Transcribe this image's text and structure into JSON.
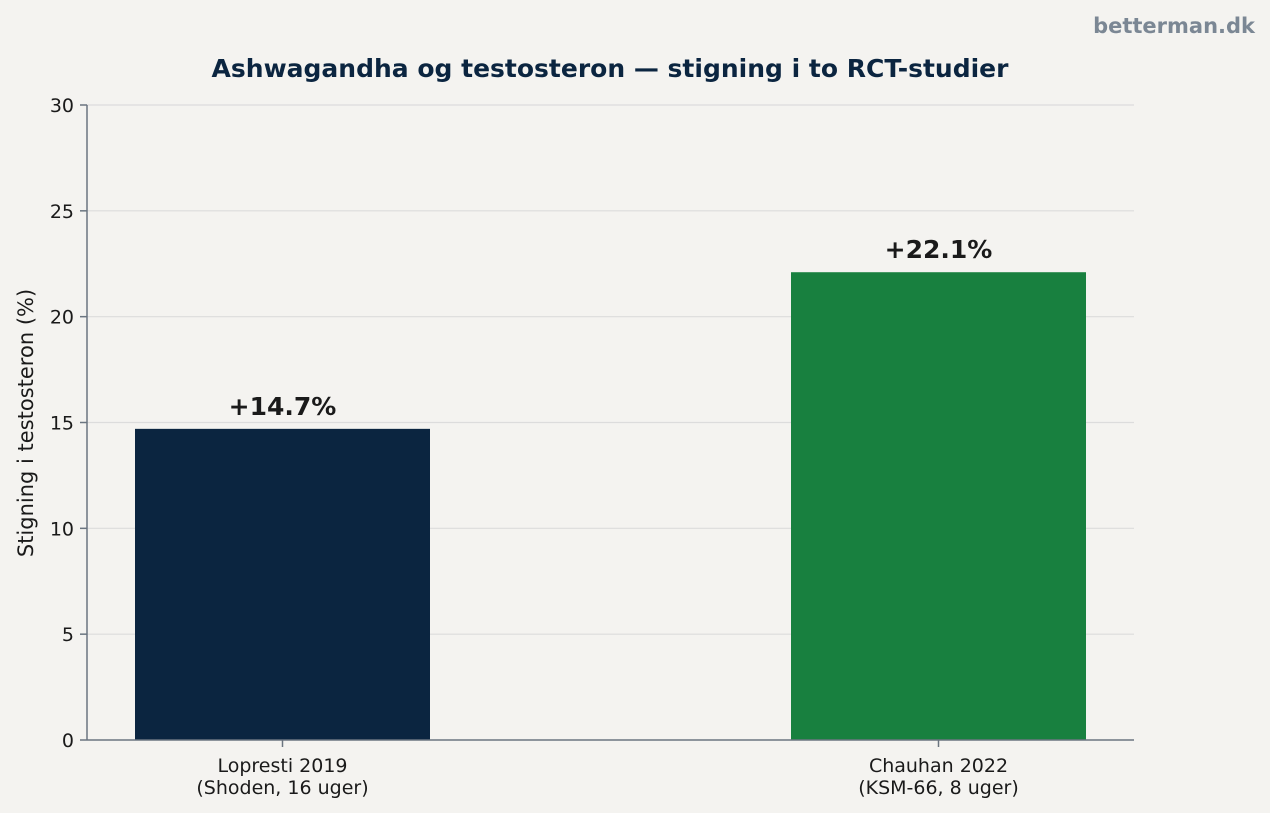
{
  "watermark": "betterman.dk",
  "chart_data": {
    "type": "bar",
    "title": "Ashwagandha og testosteron — stigning i to RCT-studier",
    "xlabel": "",
    "ylabel": "Stigning i testosteron (%)",
    "ylim": [
      0,
      30
    ],
    "yticks": [
      0,
      5,
      10,
      15,
      20,
      25,
      30
    ],
    "grid": "horizontal",
    "categories": [
      [
        "Lopresti 2019",
        "(Shoden, 16 uger)"
      ],
      [
        "Chauhan 2022",
        "(KSM-66, 8 uger)"
      ]
    ],
    "values": [
      14.7,
      22.1
    ],
    "data_labels": [
      "+14.7%",
      "+22.1%"
    ],
    "colors": [
      "#0b2540",
      "#18803f"
    ]
  }
}
